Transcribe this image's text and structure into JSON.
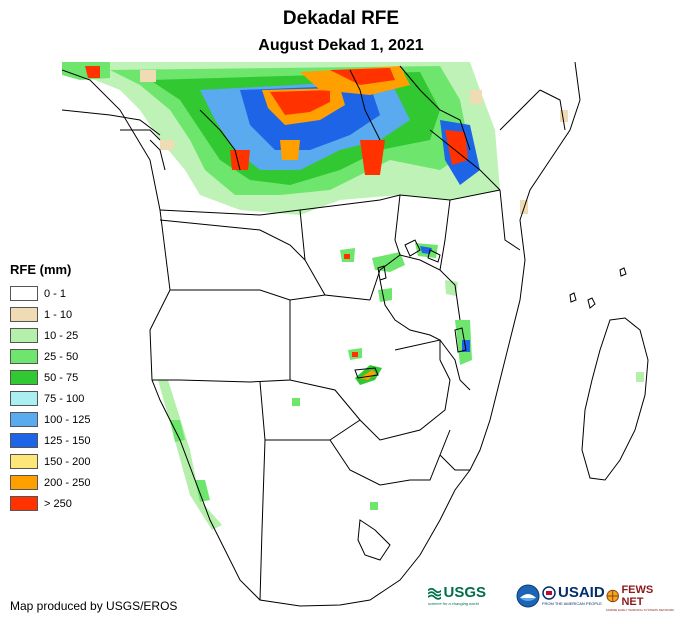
{
  "title": "Dekadal RFE",
  "subtitle": "August Dekad 1, 2021",
  "legend": {
    "title": "RFE (mm)",
    "items": [
      {
        "label": "0 - 1",
        "color": "#ffffff"
      },
      {
        "label": "1 - 10",
        "color": "#f0dcb4"
      },
      {
        "label": "10 - 25",
        "color": "#b4f0aa"
      },
      {
        "label": "25 - 50",
        "color": "#6ee66e"
      },
      {
        "label": "50 - 75",
        "color": "#32c832"
      },
      {
        "label": "75 - 100",
        "color": "#aaf0f0"
      },
      {
        "label": "100 - 125",
        "color": "#5aaaf0"
      },
      {
        "label": "125 - 150",
        "color": "#1e64e6"
      },
      {
        "label": "150 - 200",
        "color": "#ffe678"
      },
      {
        "label": "200 - 250",
        "color": "#ffa000"
      },
      {
        "label": "> 250",
        "color": "#ff3200"
      }
    ]
  },
  "credit": "Map produced by USGS/EROS",
  "logos": {
    "usgs": "USGS",
    "usgs_tagline": "science for a changing world",
    "usaid": "USAID",
    "usaid_tagline": "FROM THE AMERICAN PEOPLE",
    "fewsnet": "FEWS NET",
    "fewsnet_tagline": "FAMINE EARLY WARNING SYSTEMS NETWORK"
  }
}
